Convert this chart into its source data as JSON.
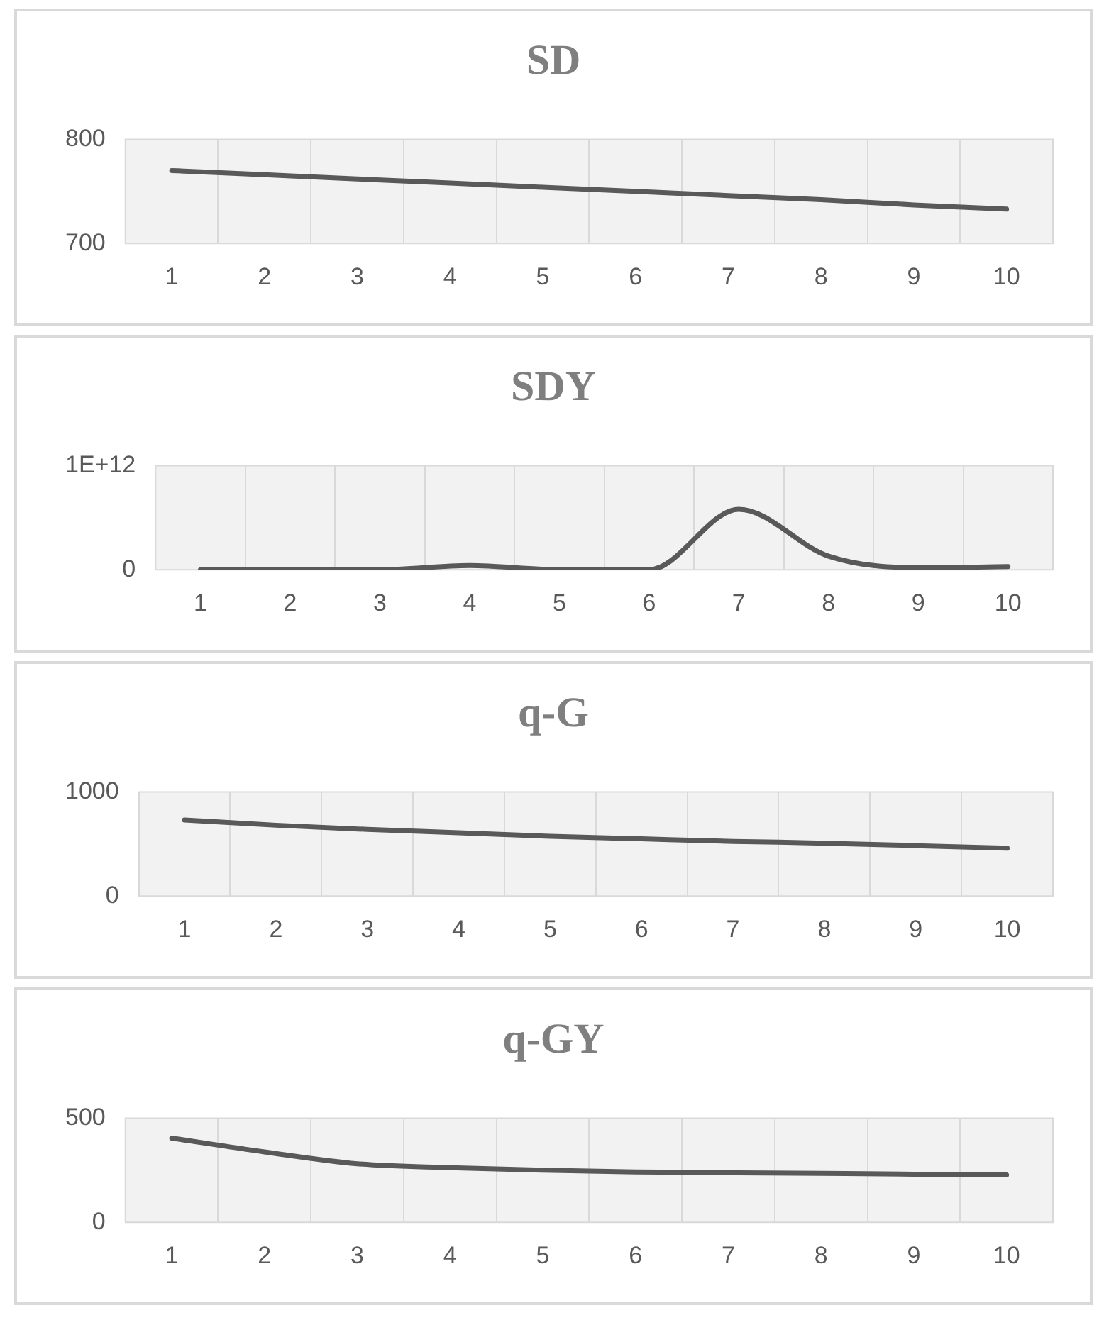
{
  "chart_data": [
    {
      "type": "line",
      "title": "SD",
      "categories": [
        "1",
        "2",
        "3",
        "4",
        "5",
        "6",
        "7",
        "8",
        "9",
        "10"
      ],
      "series": [
        {
          "color": "#595959",
          "values": [
            770,
            766,
            762,
            758,
            754,
            750,
            746,
            742,
            737,
            733
          ]
        }
      ],
      "ylim": [
        700,
        800
      ],
      "yticks": [
        700,
        800
      ],
      "grid": "x",
      "legend": false,
      "marker": "none"
    },
    {
      "type": "line",
      "title": "SDY",
      "categories": [
        "1",
        "2",
        "3",
        "4",
        "5",
        "6",
        "7",
        "8",
        "9",
        "10"
      ],
      "series": [
        {
          "color": "#595959",
          "values": [
            0,
            0,
            0,
            40000000000.0,
            0,
            0,
            580000000000.0,
            130000000000.0,
            20000000000.0,
            30000000000.0
          ]
        }
      ],
      "ylim": [
        0,
        1000000000000.0
      ],
      "yticks": [
        0,
        {
          "value": 1000000000000.0,
          "label": "1E+12"
        }
      ],
      "grid": "x",
      "legend": false,
      "marker": "none"
    },
    {
      "type": "line",
      "title": "q-G",
      "categories": [
        "1",
        "2",
        "3",
        "4",
        "5",
        "6",
        "7",
        "8",
        "9",
        "10"
      ],
      "series": [
        {
          "color": "#595959",
          "values": [
            730,
            680,
            640,
            607,
            574,
            549,
            525,
            508,
            484,
            459
          ]
        }
      ],
      "ylim": [
        0,
        1000
      ],
      "yticks": [
        0,
        1000
      ],
      "grid": "x",
      "legend": false,
      "marker": "none"
    },
    {
      "type": "line",
      "title": "q-GY",
      "categories": [
        "1",
        "2",
        "3",
        "4",
        "5",
        "6",
        "7",
        "8",
        "9",
        "10"
      ],
      "series": [
        {
          "color": "#595959",
          "values": [
            404,
            338,
            281,
            262,
            250,
            242,
            238,
            235,
            231,
            227
          ]
        }
      ],
      "ylim": [
        0,
        500
      ],
      "yticks": [
        0,
        500
      ],
      "grid": "x",
      "legend": false,
      "marker": "none"
    }
  ]
}
